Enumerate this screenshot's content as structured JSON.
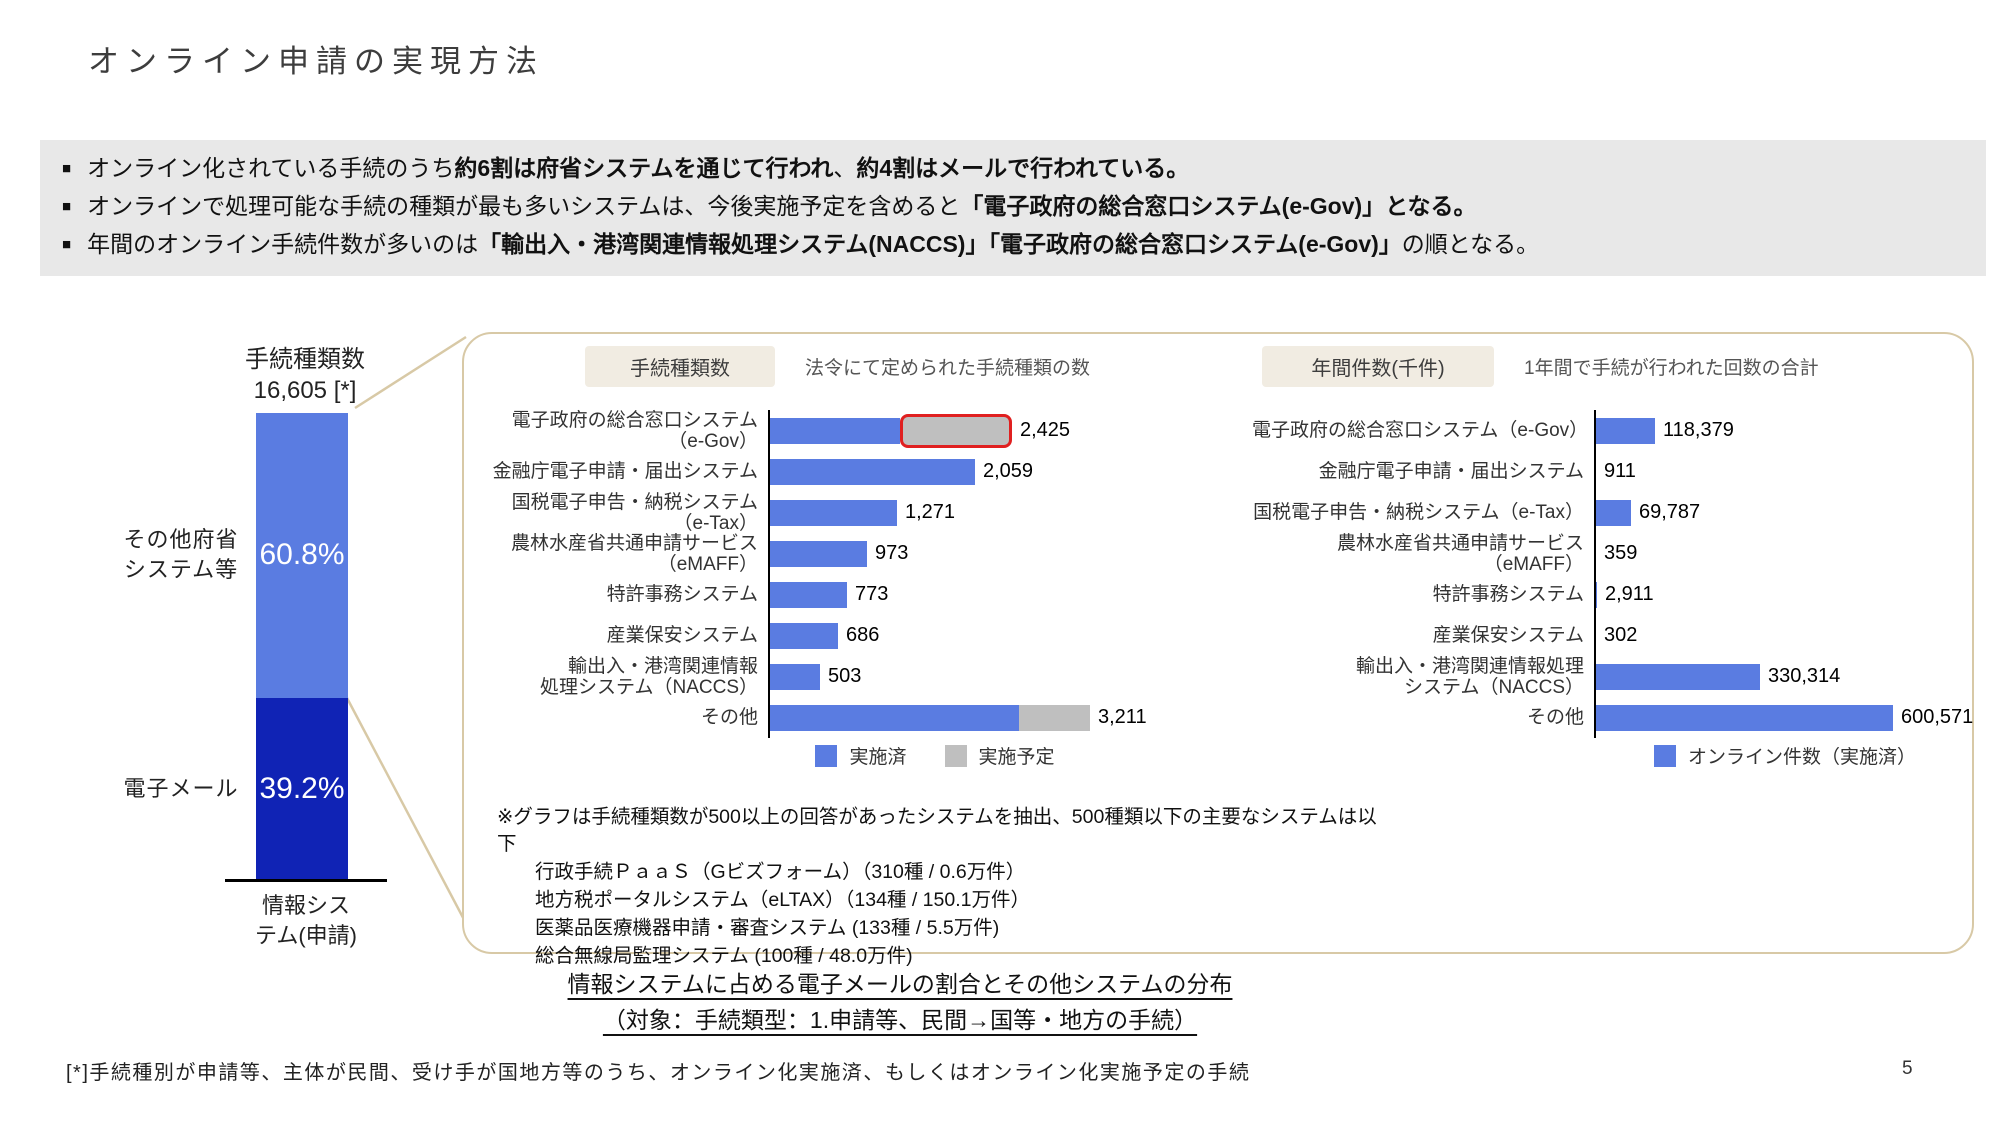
{
  "slide": {
    "title": "オンライン申請の実現方法",
    "page_number": "5",
    "footnote": "[*]手続種別が申請等、主体が民間、受け手が国地方等のうち、オンライン化実施済、もしくはオンライン化実施予定の手続"
  },
  "summary": {
    "bullets": [
      {
        "segments": [
          {
            "text": "オンライン化されている手続のうち",
            "bold": false
          },
          {
            "text": "約6割は府省システムを通じて行われ",
            "bold": true
          },
          {
            "text": "、",
            "bold": false
          },
          {
            "text": "約4割はメールで行われている。",
            "bold": true
          }
        ]
      },
      {
        "segments": [
          {
            "text": "オンラインで処理可能な手続の種類が最も多いシステムは、今後実施予定を含めると",
            "bold": false
          },
          {
            "text": "「電子政府の総合窓口システム(e-Gov)」となる。",
            "bold": true
          }
        ]
      },
      {
        "segments": [
          {
            "text": "年間のオンライン手続件数が多いのは",
            "bold": false
          },
          {
            "text": "「輸出入・港湾関連情報処理システム(NACCS)」「電子政府の総合窓口システム(e-Gov)」",
            "bold": true
          },
          {
            "text": "の順となる。",
            "bold": false
          }
        ]
      }
    ]
  },
  "chart_data": [
    {
      "type": "bar",
      "subtype": "stacked-percent-column",
      "title": "手続種類数",
      "total_label": "16,605 [*]",
      "categories": [
        "その他府省\nシステム等",
        "電子メール"
      ],
      "values": [
        60.8,
        39.2
      ],
      "value_labels": [
        "60.8%",
        "39.2%"
      ],
      "colors": [
        "#5A7CE1",
        "#1023B5"
      ],
      "x_axis_label": "情報シス\nテム(申請)"
    },
    {
      "type": "bar",
      "subtype": "horizontal-stacked",
      "badge": "手続種類数",
      "subtitle": "法令にて定められた手続種類の数",
      "categories": [
        "電子政府の総合窓口システム（e-Gov）",
        "金融庁電子申請・届出システム",
        "国税電子申告・納税システム（e-Tax）",
        "農林水産省共通申請サービス（eMAFF）",
        "特許事務システム",
        "産業保安システム",
        "輸出入・港湾関連情報\n処理システム（NACCS）",
        "その他"
      ],
      "series": [
        {
          "name": "実施済",
          "color": "#5A7CE1",
          "values": [
            1300,
            2059,
            1271,
            973,
            773,
            686,
            503,
            2500
          ]
        },
        {
          "name": "実施予定",
          "color": "#BFBFBF",
          "values": [
            1125,
            0,
            0,
            0,
            0,
            0,
            0,
            711
          ]
        }
      ],
      "total_labels": [
        "2,425",
        "2,059",
        "1,271",
        "973",
        "773",
        "686",
        "503",
        "3,211"
      ],
      "highlight": {
        "row": 0,
        "series_index": 1,
        "color": "#E02020"
      },
      "xlim": [
        0,
        3400
      ],
      "legend_position": "bottom"
    },
    {
      "type": "bar",
      "subtype": "horizontal",
      "badge": "年間件数(千件)",
      "subtitle": "1年間で手続が行われた回数の合計",
      "categories": [
        "電子政府の総合窓口システム（e-Gov）",
        "金融庁電子申請・届出システム",
        "国税電子申告・納税システム（e-Tax）",
        "農林水産省共通申請サービス（eMAFF）",
        "特許事務システム",
        "産業保安システム",
        "輸出入・港湾関連情報処理\nシステム（NACCS）",
        "その他"
      ],
      "series": [
        {
          "name": "オンライン件数（実施済）",
          "color": "#5A7CE1",
          "values": [
            118379,
            911,
            69787,
            359,
            2911,
            302,
            330314,
            600571
          ]
        }
      ],
      "total_labels": [
        "118,379",
        "911",
        "69,787",
        "359",
        "2,911",
        "302",
        "330,314",
        "600,571"
      ],
      "xlim": [
        0,
        650000
      ],
      "legend_position": "bottom"
    }
  ],
  "note": {
    "intro": "※グラフは手続種類数が500以上の回答があったシステムを抽出、500種類以下の主要なシステムは以下",
    "items": [
      "行政手続ＰａａＳ（Gビズフォーム）（310種 / 0.6万件）",
      "地方税ポータルシステム（eLTAX）（134種 / 150.1万件）",
      "医薬品医療機器申請・審査システム (133種 / 5.5万件)",
      "総合無線局監理システム (100種 / 48.0万件)"
    ]
  },
  "caption": {
    "line1": "情報システムに占める電子メールの割合とその他システムの分布",
    "line2": "（対象：手続類型：1.申請等、民間→国等・地方の手続）"
  }
}
